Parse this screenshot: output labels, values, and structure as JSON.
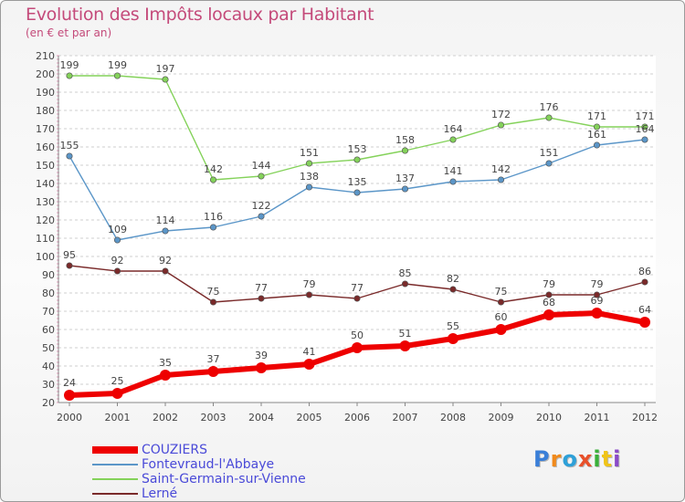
{
  "chart_data": {
    "type": "line",
    "title": "Evolution des Impôts locaux par Habitant",
    "subtitle": "(en € et par an)",
    "xlabel": "",
    "ylabel": "",
    "categories": [
      "2000",
      "2001",
      "2002",
      "2003",
      "2004",
      "2005",
      "2006",
      "2007",
      "2008",
      "2009",
      "2010",
      "2011",
      "2012"
    ],
    "y_ticks": [
      20,
      30,
      40,
      50,
      60,
      70,
      80,
      90,
      100,
      110,
      120,
      130,
      140,
      150,
      160,
      170,
      180,
      190,
      200,
      210
    ],
    "ylim": [
      20,
      210
    ],
    "grid": "horizontal dashed",
    "legend_position": "bottom-left",
    "series": [
      {
        "name": "COUZIERS",
        "color": "#ee0000",
        "values": [
          24,
          25,
          35,
          37,
          39,
          41,
          50,
          51,
          55,
          60,
          68,
          69,
          64
        ],
        "labels": [
          "24",
          "25",
          "35",
          "37",
          "39",
          "41",
          "50",
          "51",
          "55",
          "60",
          "68",
          "69",
          "64"
        ]
      },
      {
        "name": "Fontevraud-l'Abbaye",
        "color": "#5b96c8",
        "values": [
          155,
          109,
          114,
          116,
          122,
          138,
          135,
          137,
          141,
          142,
          151,
          161,
          164
        ],
        "labels": [
          "155",
          "109",
          "114",
          "116",
          "122",
          "138",
          "135",
          "137",
          "141",
          "142",
          "151",
          "161",
          "164"
        ]
      },
      {
        "name": "Saint-Germain-sur-Vienne",
        "color": "#84d25a",
        "values": [
          199,
          199,
          197,
          142,
          144,
          151,
          153,
          158,
          164,
          172,
          176,
          171,
          171
        ],
        "labels": [
          "199",
          "199",
          "197",
          "142",
          "144",
          "151",
          "153",
          "158",
          "164",
          "172",
          "176",
          "171",
          "171"
        ]
      },
      {
        "name": "Lerné",
        "color": "#7a2a2a",
        "values": [
          95,
          92,
          92,
          75,
          77,
          79,
          77,
          85,
          82,
          75,
          79,
          79,
          86
        ],
        "labels": [
          "95",
          "92",
          "92",
          "75",
          "77",
          "79",
          "77",
          "85",
          "82",
          "75",
          "79",
          "79",
          "86"
        ]
      }
    ]
  },
  "logo": {
    "letters": [
      "P",
      "r",
      "o",
      "x",
      "i",
      "t",
      "i"
    ],
    "colors": [
      "#3a7fd8",
      "#f08a1c",
      "#2ea0d8",
      "#e8502a",
      "#3ab03a",
      "#f0c419",
      "#8a4ac8"
    ]
  }
}
